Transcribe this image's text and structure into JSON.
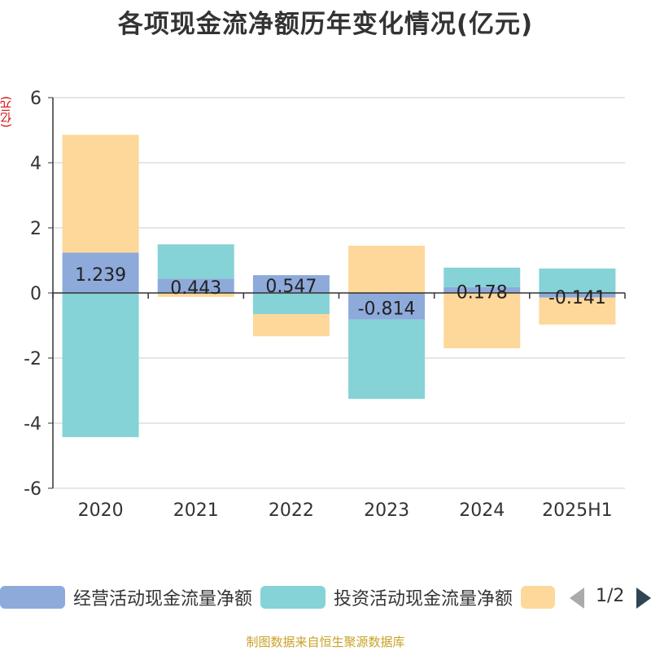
{
  "chart_data": {
    "type": "bar",
    "stacked": true,
    "title": "各项现金流净额历年变化情况(亿元)",
    "ylabel": "(亿元)",
    "categories": [
      "2020",
      "2021",
      "2022",
      "2023",
      "2024",
      "2025H1"
    ],
    "ylim": [
      -6,
      6
    ],
    "yticks": [
      6,
      4,
      2,
      0,
      -2,
      -4,
      -6
    ],
    "grid": true,
    "legend_position": "bottom",
    "series": [
      {
        "name": "经营活动现金流量净额",
        "color": "#8eaadb",
        "values": [
          1.239,
          0.443,
          0.547,
          -0.814,
          0.178,
          -0.141
        ],
        "labels": [
          "1.239",
          "0.443",
          "0.547",
          "-0.814",
          "0.178",
          "-0.141"
        ]
      },
      {
        "name": "投资活动现金流量净额",
        "color": "#85d3d6",
        "values": [
          -4.43,
          1.05,
          -0.65,
          -2.44,
          0.6,
          0.75
        ]
      },
      {
        "name": "",
        "color": "#fdd89a",
        "values": [
          3.62,
          -0.12,
          -0.68,
          1.45,
          -1.7,
          -0.83
        ]
      }
    ]
  },
  "legend": {
    "page": "1/2"
  },
  "footer": "制图数据来自恒生聚源数据库"
}
